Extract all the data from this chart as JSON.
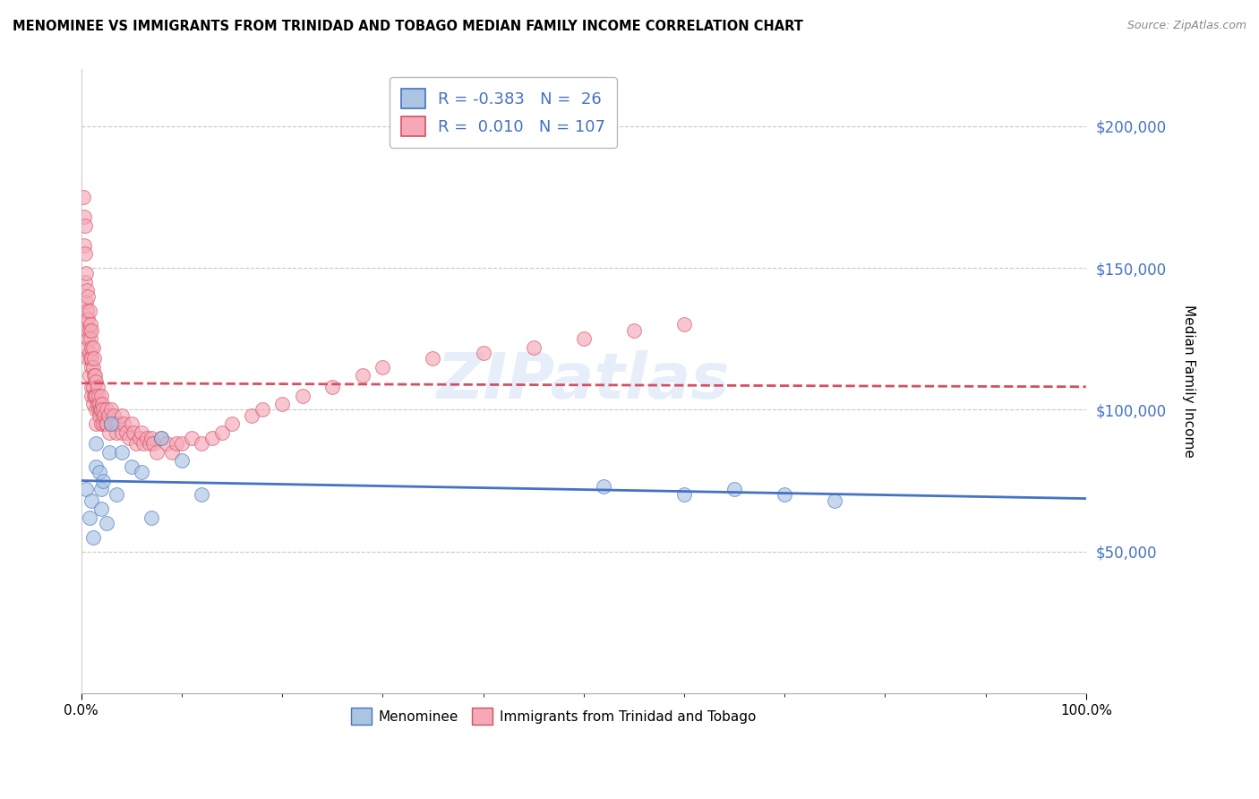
{
  "title": "MENOMINEE VS IMMIGRANTS FROM TRINIDAD AND TOBAGO MEDIAN FAMILY INCOME CORRELATION CHART",
  "source": "Source: ZipAtlas.com",
  "ylabel": "Median Family Income",
  "legend_labels": [
    "Menominee",
    "Immigrants from Trinidad and Tobago"
  ],
  "r_menominee": -0.383,
  "n_menominee": 26,
  "r_trinidad": 0.01,
  "n_trinidad": 107,
  "xlim": [
    0,
    1.0
  ],
  "ylim": [
    0,
    220000
  ],
  "yticks": [
    50000,
    100000,
    150000,
    200000
  ],
  "ytick_labels": [
    "$50,000",
    "$100,000",
    "$150,000",
    "$200,000"
  ],
  "xtick_labels": [
    "0.0%",
    "100.0%"
  ],
  "color_menominee": "#aac4e2",
  "color_menominee_edge": "#4472c4",
  "color_trinidad": "#f4a8b8",
  "color_trinidad_edge": "#d45060",
  "color_trinidad_line": "#d45060",
  "color_menominee_line": "#4472c4",
  "background_color": "#ffffff",
  "menominee_x": [
    0.005,
    0.008,
    0.01,
    0.012,
    0.015,
    0.015,
    0.018,
    0.02,
    0.02,
    0.022,
    0.025,
    0.028,
    0.03,
    0.035,
    0.04,
    0.05,
    0.06,
    0.07,
    0.08,
    0.1,
    0.12,
    0.52,
    0.6,
    0.65,
    0.7,
    0.75
  ],
  "menominee_y": [
    72000,
    62000,
    68000,
    55000,
    80000,
    88000,
    78000,
    65000,
    72000,
    75000,
    60000,
    85000,
    95000,
    70000,
    85000,
    80000,
    78000,
    62000,
    90000,
    82000,
    70000,
    73000,
    70000,
    72000,
    70000,
    68000
  ],
  "trinidad_x": [
    0.002,
    0.003,
    0.003,
    0.004,
    0.004,
    0.004,
    0.005,
    0.005,
    0.005,
    0.006,
    0.006,
    0.006,
    0.006,
    0.007,
    0.007,
    0.007,
    0.007,
    0.008,
    0.008,
    0.008,
    0.008,
    0.009,
    0.009,
    0.009,
    0.01,
    0.01,
    0.01,
    0.01,
    0.01,
    0.01,
    0.012,
    0.012,
    0.012,
    0.012,
    0.013,
    0.013,
    0.013,
    0.014,
    0.014,
    0.015,
    0.015,
    0.015,
    0.015,
    0.016,
    0.016,
    0.017,
    0.017,
    0.018,
    0.018,
    0.019,
    0.02,
    0.02,
    0.02,
    0.021,
    0.022,
    0.022,
    0.023,
    0.024,
    0.025,
    0.025,
    0.027,
    0.028,
    0.03,
    0.03,
    0.032,
    0.034,
    0.035,
    0.037,
    0.04,
    0.04,
    0.042,
    0.045,
    0.048,
    0.05,
    0.052,
    0.055,
    0.058,
    0.06,
    0.062,
    0.065,
    0.068,
    0.07,
    0.072,
    0.075,
    0.08,
    0.085,
    0.09,
    0.095,
    0.1,
    0.11,
    0.12,
    0.13,
    0.14,
    0.15,
    0.17,
    0.18,
    0.2,
    0.22,
    0.25,
    0.28,
    0.3,
    0.35,
    0.4,
    0.45,
    0.5,
    0.55,
    0.6
  ],
  "trinidad_y": [
    175000,
    168000,
    158000,
    165000,
    145000,
    155000,
    148000,
    138000,
    130000,
    142000,
    135000,
    128000,
    122000,
    140000,
    132000,
    125000,
    118000,
    135000,
    128000,
    120000,
    112000,
    130000,
    125000,
    118000,
    128000,
    122000,
    115000,
    108000,
    118000,
    105000,
    122000,
    115000,
    108000,
    102000,
    118000,
    112000,
    105000,
    112000,
    105000,
    110000,
    105000,
    100000,
    95000,
    108000,
    102000,
    105000,
    100000,
    102000,
    98000,
    100000,
    105000,
    100000,
    95000,
    102000,
    100000,
    95000,
    98000,
    95000,
    100000,
    95000,
    98000,
    92000,
    100000,
    95000,
    98000,
    95000,
    92000,
    95000,
    98000,
    92000,
    95000,
    92000,
    90000,
    95000,
    92000,
    88000,
    90000,
    92000,
    88000,
    90000,
    88000,
    90000,
    88000,
    85000,
    90000,
    88000,
    85000,
    88000,
    88000,
    90000,
    88000,
    90000,
    92000,
    95000,
    98000,
    100000,
    102000,
    105000,
    108000,
    112000,
    115000,
    118000,
    120000,
    122000,
    125000,
    128000,
    130000
  ]
}
